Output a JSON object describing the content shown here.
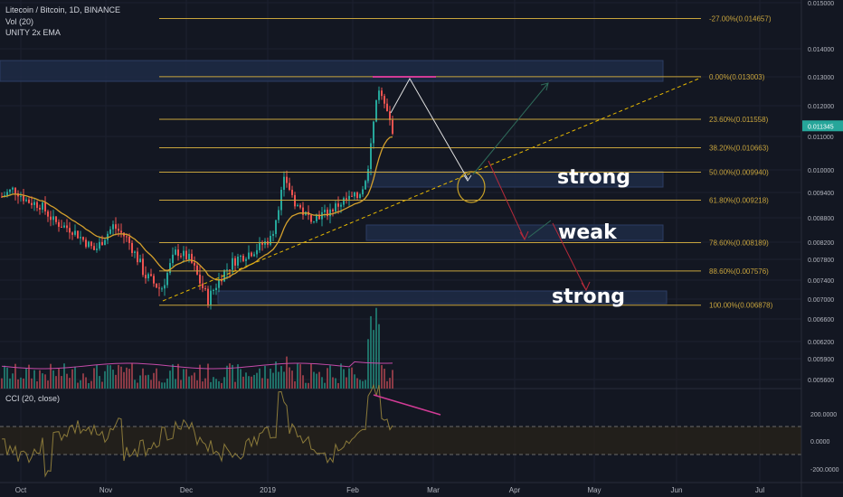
{
  "header": {
    "symbol": "Litecoin / Bitcoin, 1D, BINANCE",
    "indicators": [
      "Vol (20)",
      "UNITY 2x EMA"
    ],
    "cci_title": "CCI (20, close)"
  },
  "colors": {
    "background": "#131722",
    "up": "#26a69a",
    "down": "#ef5350",
    "fib": "#c8a43d",
    "ema": "#d4a02c",
    "trend": "#e6b800",
    "price_tag": "#26a69a",
    "cci": "#8b7a3a",
    "zone": "#1e2b45"
  },
  "chart_data": {
    "type": "candlestick",
    "x_axis": {
      "ticks": [
        "Oct",
        "Nov",
        "Dec",
        "2019",
        "Feb",
        "Mar",
        "Apr",
        "May",
        "Jun",
        "Jul"
      ]
    },
    "price_axis": {
      "ticks": [
        "0.015000",
        "0.014000",
        "0.013000",
        "0.012000",
        "0.011000",
        "0.010000",
        "0.009400",
        "0.008800",
        "0.008200",
        "0.007800",
        "0.007400",
        "0.007000",
        "0.006600",
        "0.006200",
        "0.005900",
        "0.005600"
      ],
      "current_price": "0.011345"
    },
    "fib_levels": [
      {
        "label": "-27.00%(0.014657)",
        "price": 0.014657
      },
      {
        "label": "0.00%(0.013003)",
        "price": 0.013003
      },
      {
        "label": "23.60%(0.011558)",
        "price": 0.011558
      },
      {
        "label": "38.20%(0.010663)",
        "price": 0.010663
      },
      {
        "label": "50.00%(0.009940)",
        "price": 0.00994
      },
      {
        "label": "61.80%(0.009218)",
        "price": 0.009218
      },
      {
        "label": "78.60%(0.008189)",
        "price": 0.008189
      },
      {
        "label": "88.60%(0.007576)",
        "price": 0.007576
      },
      {
        "label": "100.00%(0.006878)",
        "price": 0.006878
      }
    ],
    "annotations": [
      "strong",
      "weak",
      "strong"
    ],
    "cci_axis": {
      "ticks": [
        "200.0000",
        "0.0000",
        "-200.0000"
      ]
    }
  }
}
